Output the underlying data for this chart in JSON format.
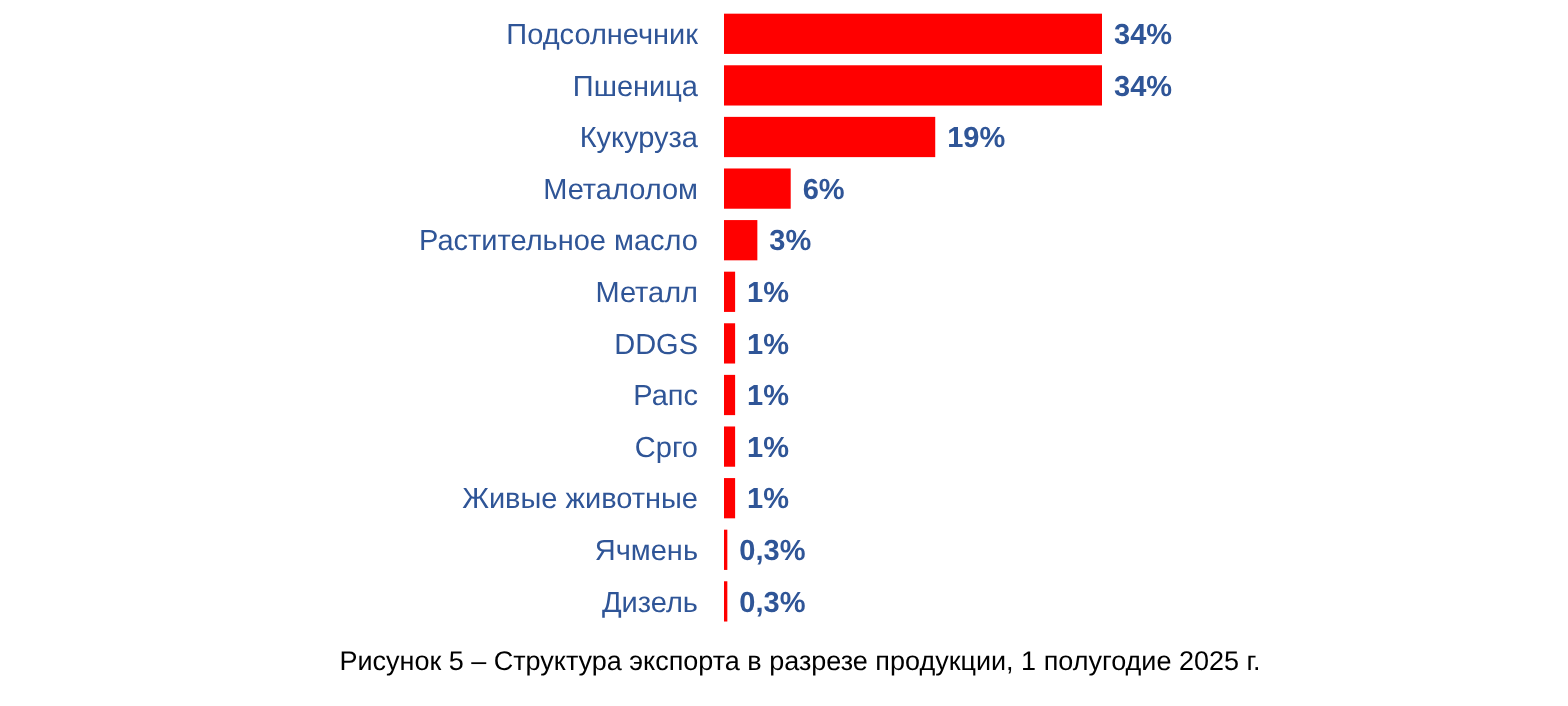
{
  "chart_data": {
    "type": "bar",
    "orientation": "horizontal",
    "categories": [
      "Подсолнечник",
      "Пшеница",
      "Кукуруза",
      "Металолом",
      "Растительное масло",
      "Металл",
      "DDGS",
      "Рапс",
      "Срго",
      "Живые животные",
      "Ячмень",
      "Дизель"
    ],
    "values": [
      34,
      34,
      19,
      6,
      3,
      1,
      1,
      1,
      1,
      1,
      0.3,
      0.3
    ],
    "value_labels": [
      "34%",
      "34%",
      "19%",
      "6%",
      "3%",
      "1%",
      "1%",
      "1%",
      "1%",
      "1%",
      "0,3%",
      "0,3%"
    ],
    "color": "#ff0000",
    "annotations": [
      "Рисунок 5 – Структура экспорта в разрезе продукции, 1 полугодие 2025 г."
    ]
  }
}
